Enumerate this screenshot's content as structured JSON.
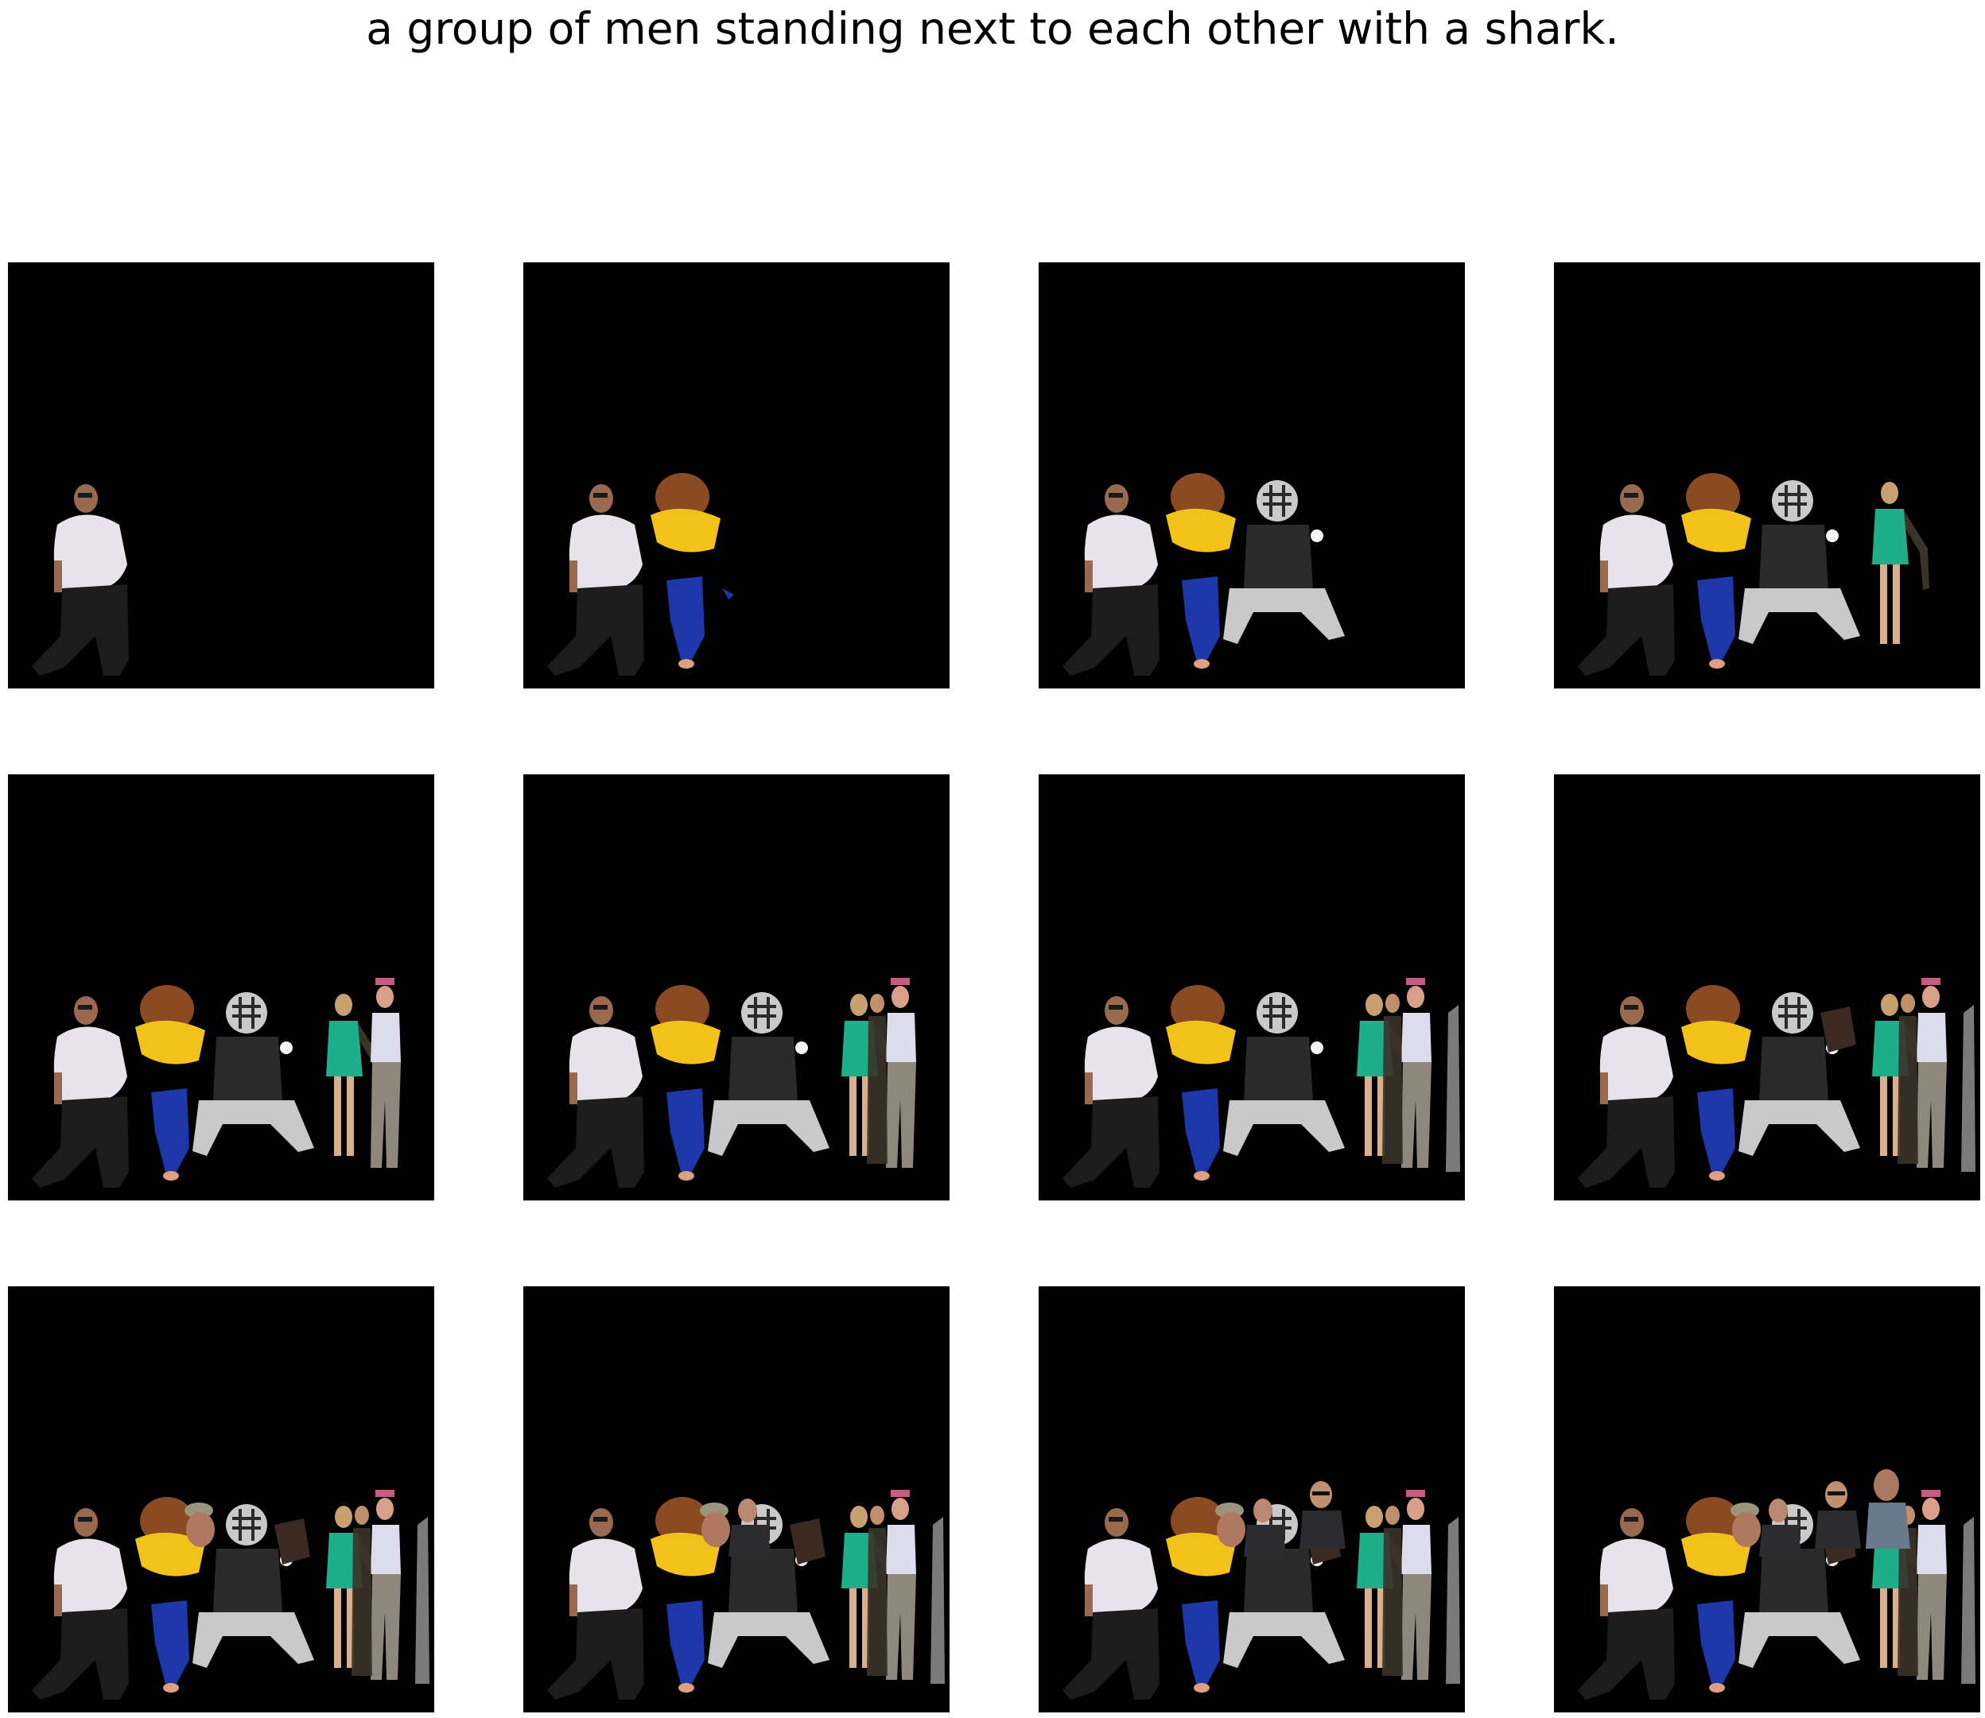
{
  "caption": "a group of men standing next to each other with a shark.",
  "grid": {
    "rows": 3,
    "cols": 4,
    "frame_background": "#000000"
  },
  "frames": [
    {
      "index": 1,
      "visible_figures": [
        "man-white-shirt"
      ]
    },
    {
      "index": 2,
      "visible_figures": [
        "man-white-shirt",
        "child-brown-hair",
        "child-blue-pants"
      ]
    },
    {
      "index": 3,
      "visible_figures": [
        "man-white-shirt",
        "child-brown-hair",
        "child-blue-pants",
        "catcher-gear"
      ]
    },
    {
      "index": 4,
      "visible_figures": [
        "man-white-shirt",
        "child-brown-hair",
        "child-blue-pants",
        "catcher-gear",
        "woman-teal-dress"
      ]
    },
    {
      "index": 5,
      "visible_figures": [
        "man-white-shirt",
        "child-brown-hair",
        "child-blue-pants",
        "catcher-gear",
        "woman-teal-dress",
        "person-pink-cap"
      ]
    },
    {
      "index": 6,
      "visible_figures": [
        "man-white-shirt",
        "child-brown-hair",
        "child-blue-pants",
        "catcher-gear",
        "woman-teal-dress",
        "person-pink-cap",
        "woman-dark-outfit"
      ]
    },
    {
      "index": 7,
      "visible_figures": [
        "man-white-shirt",
        "child-brown-hair",
        "child-blue-pants",
        "catcher-gear",
        "woman-teal-dress",
        "person-pink-cap",
        "woman-dark-outfit",
        "gray-strip"
      ]
    },
    {
      "index": 8,
      "visible_figures": [
        "man-white-shirt",
        "child-brown-hair",
        "child-blue-pants",
        "catcher-gear",
        "woman-teal-dress",
        "person-pink-cap",
        "woman-dark-outfit",
        "gray-strip",
        "dark-figure"
      ]
    },
    {
      "index": 9,
      "visible_figures": [
        "man-white-shirt",
        "child-brown-hair",
        "child-blue-pants",
        "catcher-gear",
        "woman-teal-dress",
        "person-pink-cap",
        "woman-dark-outfit",
        "gray-strip",
        "dark-figure",
        "man-camo-cap"
      ]
    },
    {
      "index": 10,
      "visible_figures": [
        "man-white-shirt",
        "child-brown-hair",
        "child-blue-pants",
        "catcher-gear",
        "woman-teal-dress",
        "person-pink-cap",
        "woman-dark-outfit",
        "gray-strip",
        "dark-figure",
        "man-camo-cap",
        "man-suit"
      ]
    },
    {
      "index": 11,
      "visible_figures": [
        "man-white-shirt",
        "child-brown-hair",
        "child-blue-pants",
        "catcher-gear",
        "woman-teal-dress",
        "person-pink-cap",
        "woman-dark-outfit",
        "gray-strip",
        "dark-figure",
        "man-camo-cap",
        "man-suit",
        "man-sunglasses"
      ]
    },
    {
      "index": 12,
      "visible_figures": [
        "man-white-shirt",
        "child-brown-hair",
        "child-blue-pants",
        "catcher-gear",
        "woman-teal-dress",
        "person-pink-cap",
        "woman-dark-outfit",
        "gray-strip",
        "dark-figure",
        "man-camo-cap",
        "man-suit",
        "man-sunglasses",
        "man-plaid-shirt"
      ]
    }
  ],
  "colors": {
    "skin": "#9a6a50",
    "white_shirt": "#e8e2ea",
    "black_pants": "#1c1c1c",
    "brown_hair": "#8a4a22",
    "yellow_shirt": "#f2c21a",
    "blue_pants": "#1d36a8",
    "catcher_gray": "#c9c9c9",
    "catcher_dark": "#2a2a2a",
    "teal_dress": "#1fae8a",
    "pink_cap": "#c85a84",
    "light_blouse": "#dcdcec",
    "khaki_pants": "#8e887c",
    "dark_outfit": "#3a3328",
    "gray_strip": "#7a7a7a",
    "dark_figure": "#3b2a22",
    "camo": "#9a947a",
    "suit": "#2c2c30",
    "plaid": "#6a7a8a"
  }
}
